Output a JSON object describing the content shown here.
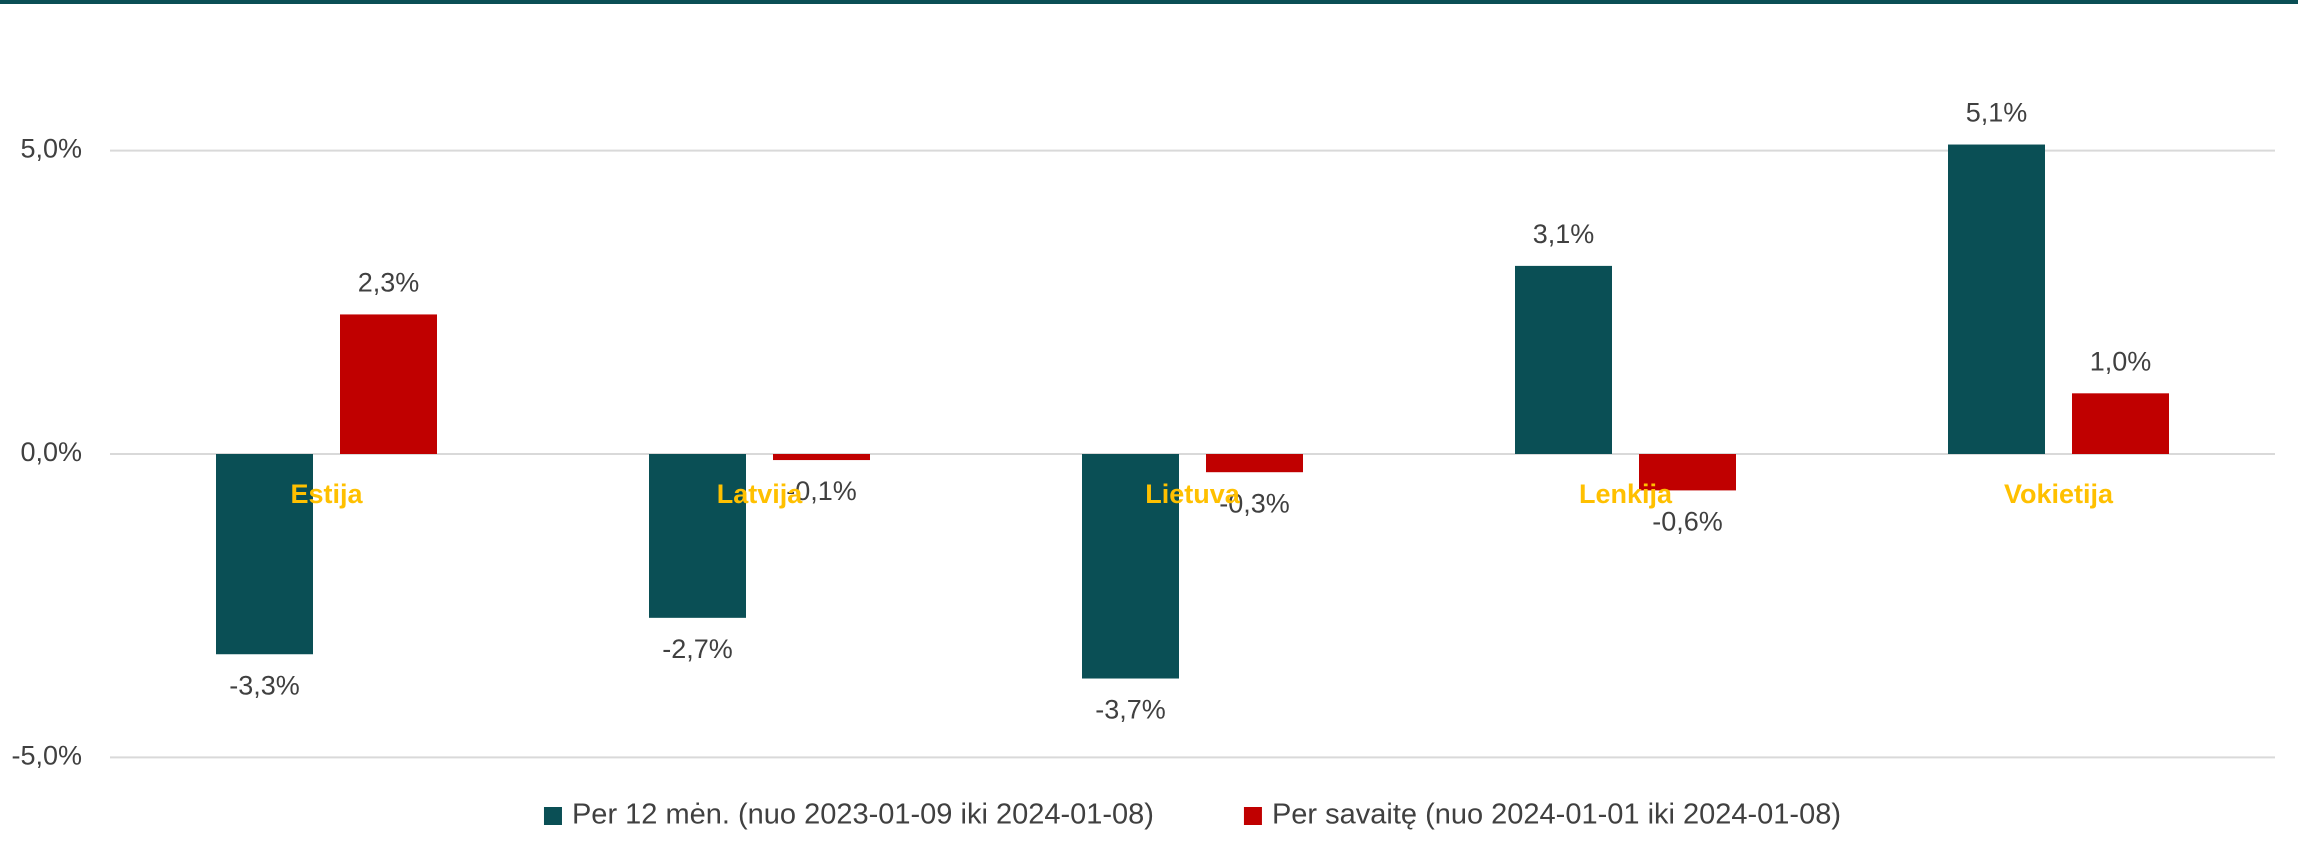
{
  "chart_data": {
    "type": "bar",
    "categories": [
      "Estija",
      "Latvija",
      "Lietuva",
      "Lenkija",
      "Vokietija"
    ],
    "series": [
      {
        "name": "Per 12 mėn. (nuo 2023-01-09 iki 2024-01-08)",
        "color": "#0a4f55",
        "values": [
          -3.3,
          -2.7,
          -3.7,
          3.1,
          5.1
        ],
        "value_labels": [
          "-3,3%",
          "-2,7%",
          "-3,7%",
          "3,1%",
          "5,1%"
        ]
      },
      {
        "name": "Per savaitę (nuo 2024-01-01 iki 2024-01-08)",
        "color": "#c00000",
        "values": [
          2.3,
          -0.1,
          -0.3,
          -0.6,
          1.0
        ],
        "value_labels": [
          "2,3%",
          "-0,1%",
          "-0,3%",
          "-0,6%",
          "1,0%"
        ]
      }
    ],
    "ylim": [
      -5,
      6
    ],
    "yticks": [
      {
        "value": -5,
        "label": "-5,0%"
      },
      {
        "value": 0,
        "label": "0,0%"
      },
      {
        "value": 5,
        "label": "5,0%"
      }
    ],
    "grid": true,
    "legend": "bottom",
    "category_label_color": "#ffc000"
  }
}
